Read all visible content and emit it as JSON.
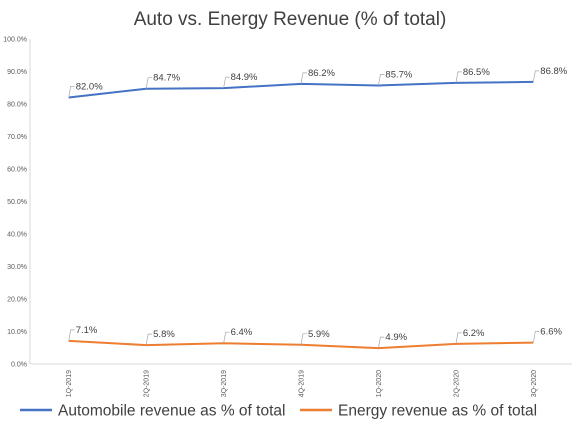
{
  "chart_data": {
    "type": "line",
    "title": "Auto vs. Energy Revenue (% of total)",
    "xlabel": "",
    "ylabel": "",
    "categories": [
      "1Q-2019",
      "2Q-2019",
      "3Q-2019",
      "4Q-2019",
      "1Q-2020",
      "2Q-2020",
      "3Q-2020"
    ],
    "ylim": [
      0,
      100
    ],
    "yticks": [
      "0.0%",
      "10.0%",
      "20.0%",
      "30.0%",
      "40.0%",
      "50.0%",
      "60.0%",
      "70.0%",
      "80.0%",
      "90.0%",
      "100.0%"
    ],
    "grid": false,
    "legend_position": "bottom",
    "series": [
      {
        "name": "Automobile revenue as % of total",
        "color": "#4472c4",
        "values": [
          82.0,
          84.7,
          84.9,
          86.2,
          85.7,
          86.5,
          86.8
        ],
        "labels": [
          "82.0%",
          "84.7%",
          "84.9%",
          "86.2%",
          "85.7%",
          "86.5%",
          "86.8%"
        ]
      },
      {
        "name": "Energy revenue as % of total",
        "color": "#ed7d31",
        "values": [
          7.1,
          5.8,
          6.4,
          5.9,
          4.9,
          6.2,
          6.6
        ],
        "labels": [
          "7.1%",
          "5.8%",
          "6.4%",
          "5.9%",
          "4.9%",
          "6.2%",
          "6.6%"
        ]
      }
    ]
  }
}
